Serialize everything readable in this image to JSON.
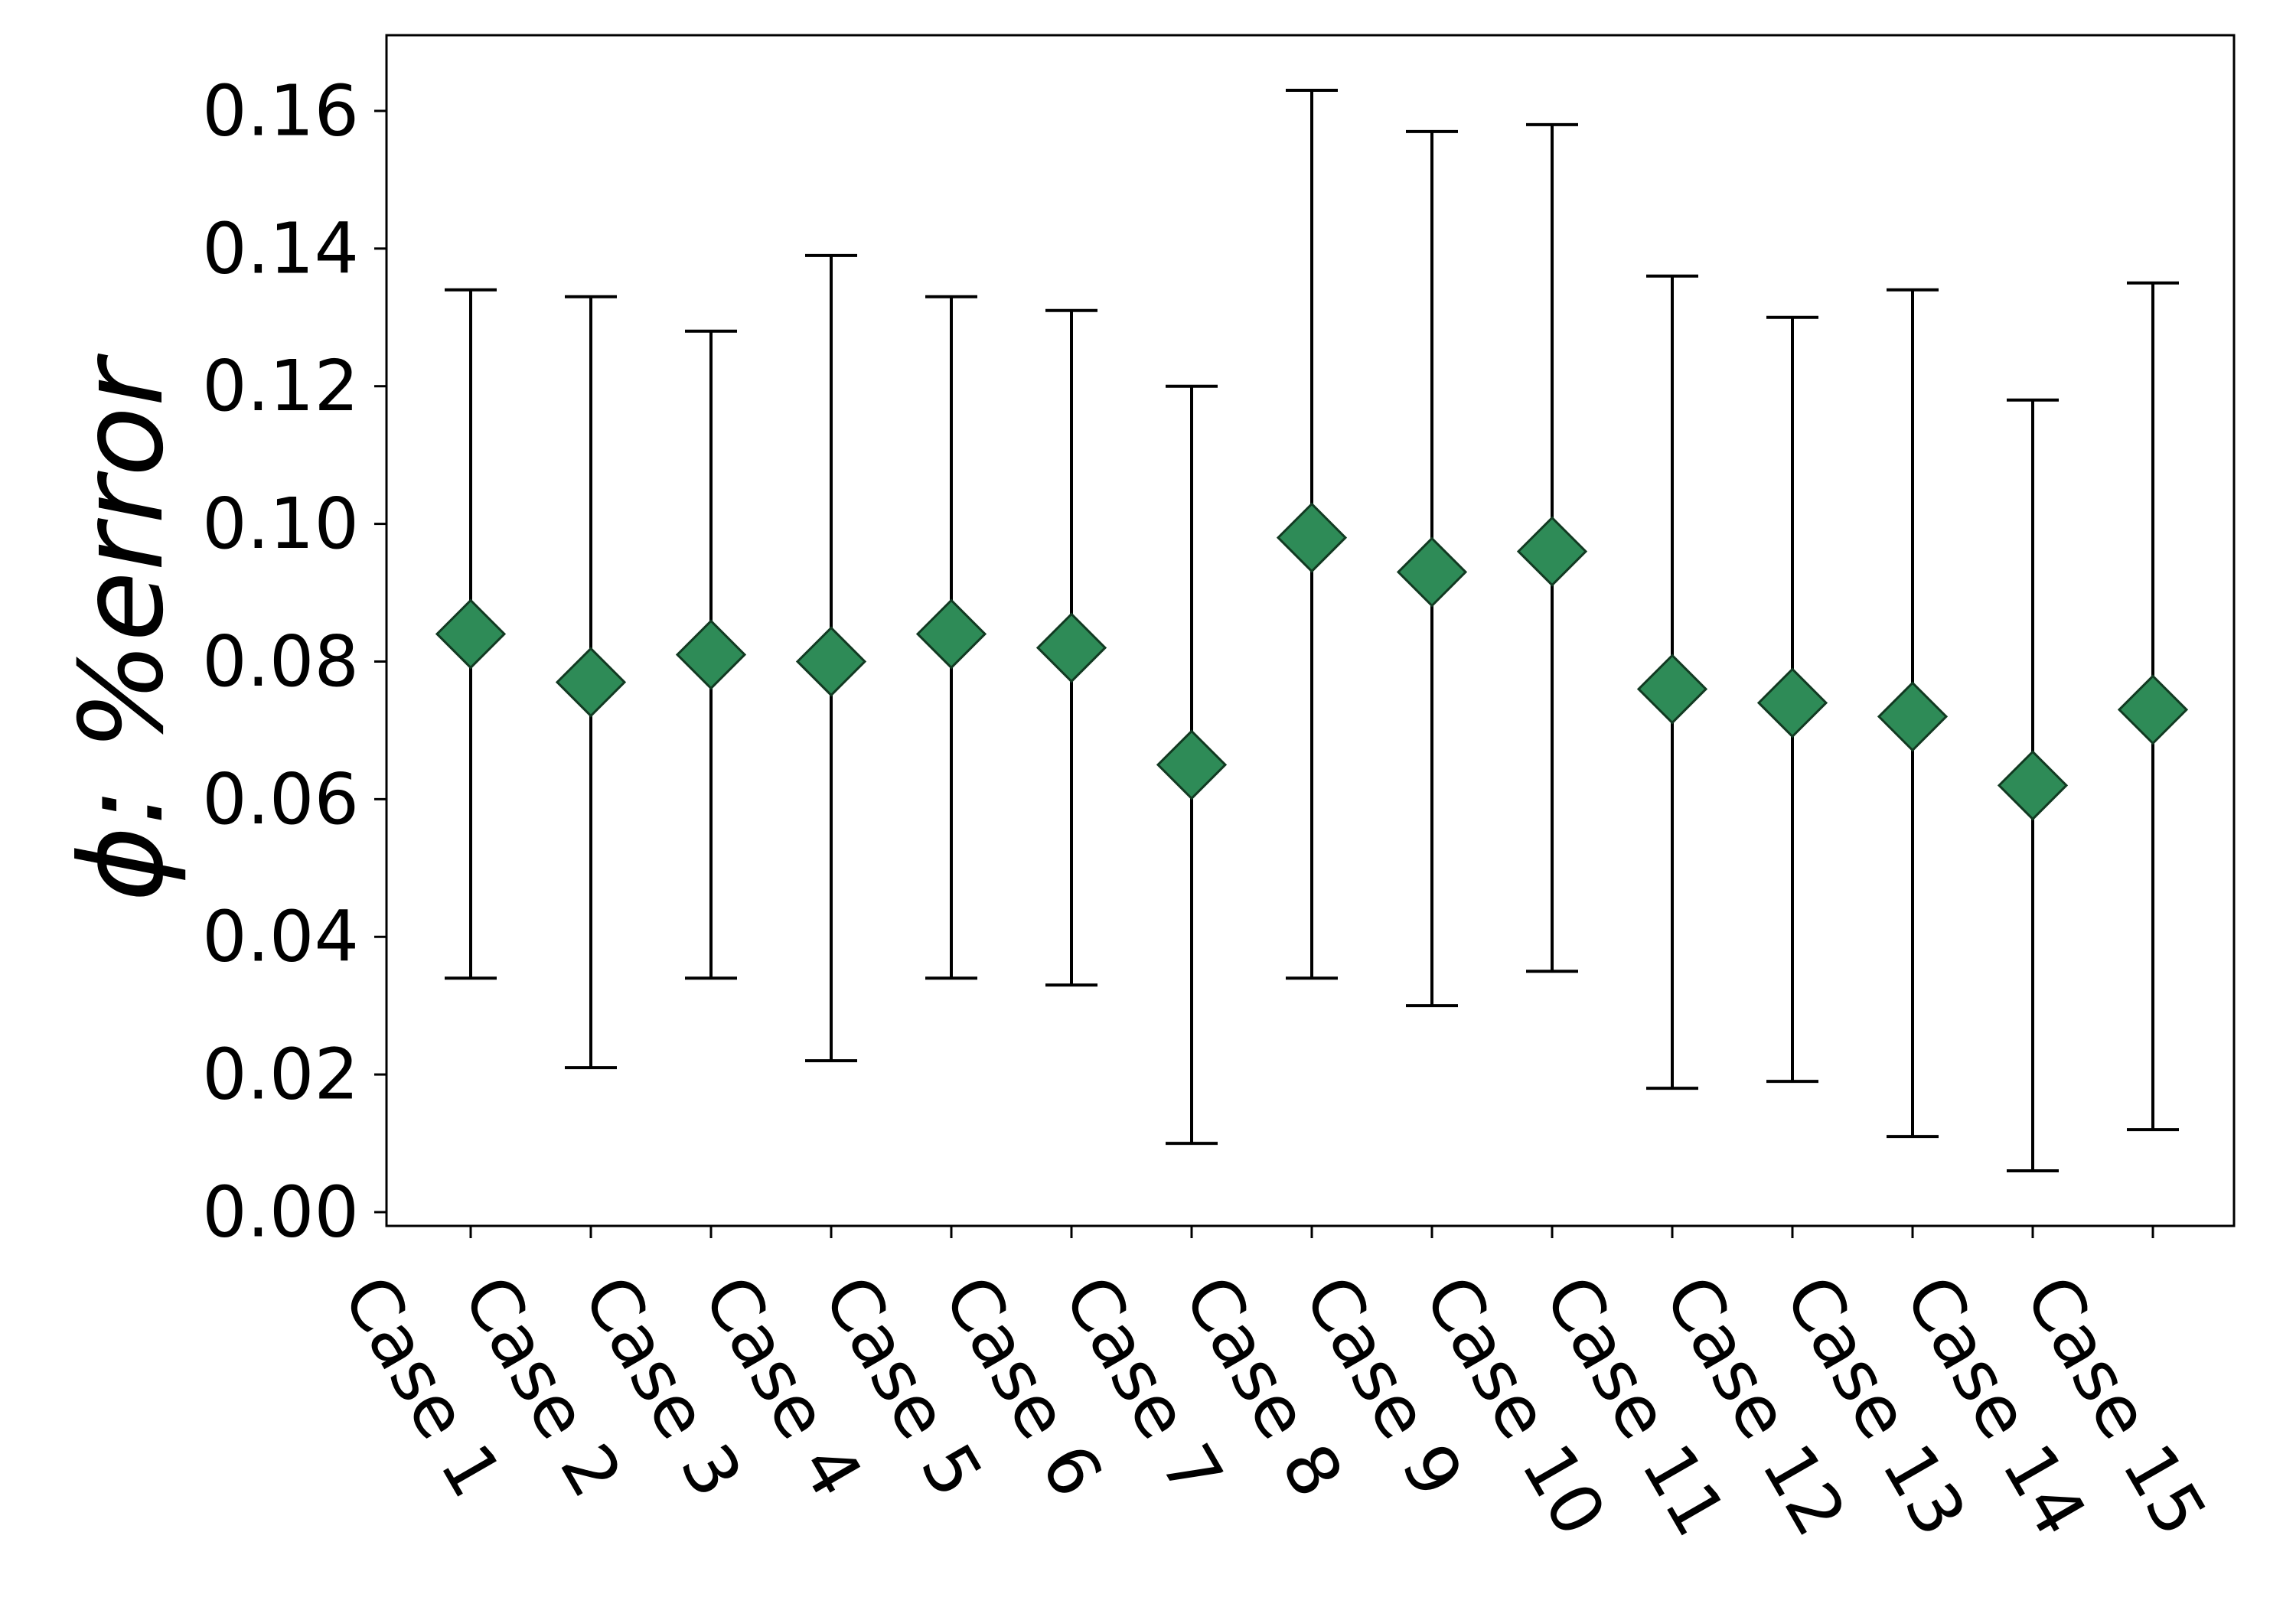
{
  "chart_data": {
    "type": "scatter",
    "subtype": "errorbar",
    "categories": [
      "Case 1",
      "Case 2",
      "Case 3",
      "Case 4",
      "Case 5",
      "Case 6",
      "Case 7",
      "Case 8",
      "Case 9",
      "Case 10",
      "Case 11",
      "Case 12",
      "Case 13",
      "Case 14",
      "Case 15"
    ],
    "series": [
      {
        "values": [
          0.084,
          0.077,
          0.081,
          0.08,
          0.084,
          0.082,
          0.065,
          0.098,
          0.093,
          0.096,
          0.076,
          0.074,
          0.072,
          0.062,
          0.073
        ],
        "lower": [
          0.034,
          0.021,
          0.034,
          0.022,
          0.034,
          0.033,
          0.01,
          0.034,
          0.03,
          0.035,
          0.018,
          0.019,
          0.011,
          0.006,
          0.012
        ],
        "upper": [
          0.134,
          0.133,
          0.128,
          0.139,
          0.133,
          0.131,
          0.12,
          0.163,
          0.157,
          0.158,
          0.136,
          0.13,
          0.134,
          0.118,
          0.135
        ],
        "marker": "diamond",
        "color": "#2e8b57"
      }
    ],
    "yticks": [
      "0.00",
      "0.02",
      "0.04",
      "0.06",
      "0.08",
      "0.10",
      "0.12",
      "0.14",
      "0.16"
    ],
    "ylabel_symbol": "ϕ",
    "ylabel_text": ": %error",
    "xlabel": "",
    "title": "",
    "ylim": [
      -0.002,
      0.171
    ],
    "grid": false,
    "legend": "none",
    "colors": {
      "marker": "#2e8b57",
      "errorbar": "#000000",
      "axis": "#000000"
    }
  }
}
